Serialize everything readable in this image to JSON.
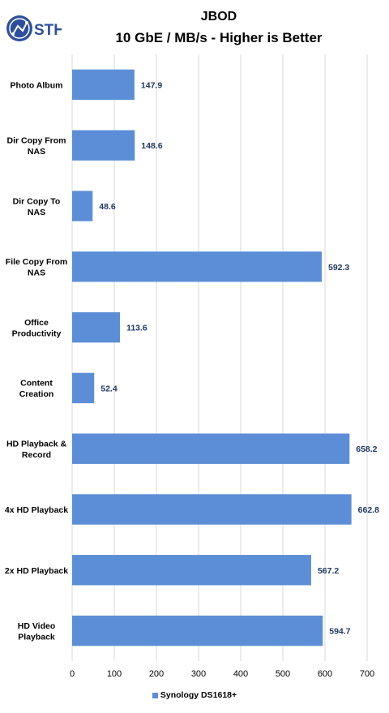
{
  "logo": {
    "text": "STH",
    "color": "#2d4f9e"
  },
  "chart_data": {
    "type": "bar",
    "orientation": "horizontal",
    "title": "JBOD",
    "subtitle": "10 GbE / MB/s - Higher is Better",
    "categories": [
      [
        "Photo Album"
      ],
      [
        "Dir Copy From",
        "NAS"
      ],
      [
        "Dir Copy To",
        "NAS"
      ],
      [
        "File Copy From",
        "NAS"
      ],
      [
        "Office",
        "Productivity"
      ],
      [
        "Content",
        "Creation"
      ],
      [
        "HD Playback &",
        "Record"
      ],
      [
        "4x HD Playback"
      ],
      [
        "2x HD Playback"
      ],
      [
        "HD Video",
        "Playback"
      ]
    ],
    "series": [
      {
        "name": "Synology DS1618+",
        "color": "#5b8ed6",
        "values": [
          147.9,
          148.6,
          48.6,
          592.3,
          113.6,
          52.4,
          658.2,
          662.8,
          567.2,
          594.7
        ]
      }
    ],
    "value_labels": [
      "147.9",
      "148.6",
      "48.6",
      "592.3",
      "113.6",
      "52.4",
      "658.2",
      "662.8",
      "567.2",
      "594.7"
    ],
    "xlim": [
      0,
      700
    ],
    "xticks": [
      0,
      100,
      200,
      300,
      400,
      500,
      600,
      700
    ],
    "grid": true,
    "legend_position": "bottom"
  }
}
